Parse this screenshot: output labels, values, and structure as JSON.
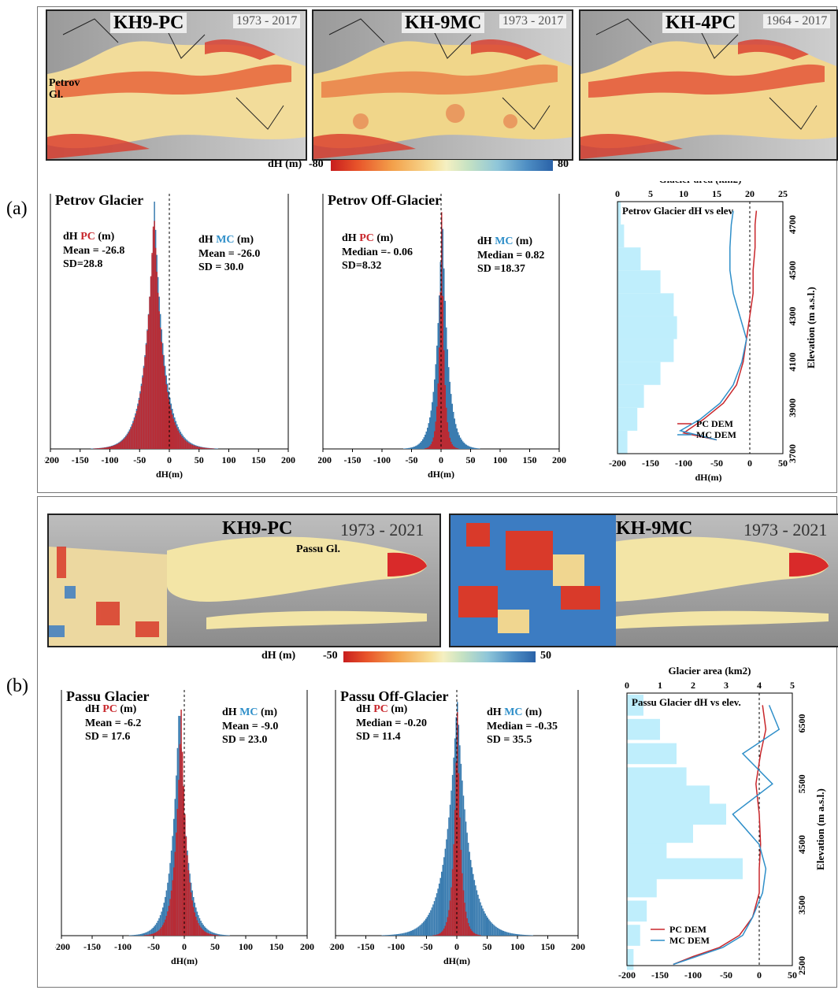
{
  "panel_a": {
    "letter": "(a)",
    "maps": [
      {
        "label": "KH9-PC",
        "years": "1973 - 2017"
      },
      {
        "label": "KH-9MC",
        "years": "1973 - 2017"
      },
      {
        "label": "KH-4PC",
        "years": "1964 - 2017"
      }
    ],
    "map_annotation": "Petrov Gl.",
    "colorbar": {
      "label": "dH (m)",
      "min": "-80",
      "max": "80"
    }
  },
  "panel_b": {
    "letter": "(b)",
    "maps": [
      {
        "label": "KH9-PC",
        "years": "1973 - 2021"
      },
      {
        "label": "KH-9MC",
        "years": "1973 - 2021"
      }
    ],
    "map_annotation": "Passu Gl.",
    "colorbar": {
      "label": "dH (m)",
      "min": "-50",
      "max": "50"
    }
  },
  "colors": {
    "pc": "#c8262b",
    "mc": "#2f8fc9",
    "mc_hist": "#3a7cb0",
    "pc_hist": "#c0272d",
    "area": "#bfeefc"
  },
  "chart_data": [
    {
      "id": "petrov-glacier-hist",
      "type": "histogram",
      "title": "Petrov Glacier",
      "xlabel": "dH(m)",
      "xlim": [
        -200,
        200
      ],
      "xticks": [
        -200,
        -150,
        -100,
        -50,
        0,
        50,
        100,
        150,
        200
      ],
      "pc_label": "dH PC (m)",
      "pc_stats": [
        "Mean = -26.8",
        "SD=28.8"
      ],
      "mc_label": "dH MC (m)",
      "mc_stats": [
        "Mean = -26.0",
        "SD = 30.0"
      ],
      "series": [
        {
          "name": "MC",
          "mean": -26.0,
          "sd": 30.0
        },
        {
          "name": "PC",
          "mean": -26.8,
          "sd": 28.8
        }
      ]
    },
    {
      "id": "petrov-off-hist",
      "type": "histogram",
      "title": "Petrov Off-Glacier",
      "xlabel": "dH(m)",
      "xlim": [
        -200,
        200
      ],
      "xticks": [
        -200,
        -150,
        -100,
        -50,
        0,
        50,
        100,
        150,
        200
      ],
      "pc_label": "dH PC (m)",
      "pc_stats": [
        "Median =- 0.06",
        "SD=8.32"
      ],
      "mc_label": "dH MC (m)",
      "mc_stats": [
        "Median = 0.82",
        "SD =18.37"
      ],
      "series": [
        {
          "name": "MC",
          "median": 0.82,
          "sd": 18.37
        },
        {
          "name": "PC",
          "median": -0.06,
          "sd": 8.32
        }
      ]
    },
    {
      "id": "petrov-elev",
      "type": "line",
      "title": "Petrov Glacier dH vs elev",
      "top_axis_label": "Glacier area (km2)",
      "top_ticks": [
        0,
        5,
        10,
        15,
        20,
        25
      ],
      "xlabel": "dH(m)",
      "xticks": [
        -200,
        -150,
        -100,
        -50,
        0,
        50
      ],
      "ylabel": "Elevation (m a.s.l.)",
      "yticks": [
        3700,
        3900,
        4100,
        4300,
        4500,
        4700
      ],
      "ylim": [
        3700,
        4800
      ],
      "area_bins": [
        {
          "elev": 3750,
          "area": 1.5
        },
        {
          "elev": 3850,
          "area": 3.0
        },
        {
          "elev": 3950,
          "area": 4.0
        },
        {
          "elev": 4050,
          "area": 6.5
        },
        {
          "elev": 4150,
          "area": 8.5
        },
        {
          "elev": 4250,
          "area": 9.0
        },
        {
          "elev": 4350,
          "area": 8.5
        },
        {
          "elev": 4450,
          "area": 6.5
        },
        {
          "elev": 4550,
          "area": 3.5
        },
        {
          "elev": 4650,
          "area": 1.0
        },
        {
          "elev": 4750,
          "area": 0.5
        }
      ],
      "series": [
        {
          "name": "PC DEM",
          "points": [
            [
              -50,
              3760
            ],
            [
              -100,
              3790
            ],
            [
              -70,
              3850
            ],
            [
              -40,
              3920
            ],
            [
              -20,
              4000
            ],
            [
              -10,
              4100
            ],
            [
              -5,
              4200
            ],
            [
              0,
              4300
            ],
            [
              5,
              4400
            ],
            [
              5,
              4500
            ],
            [
              8,
              4600
            ],
            [
              8,
              4700
            ],
            [
              10,
              4760
            ]
          ]
        },
        {
          "name": "MC DEM",
          "points": [
            [
              -50,
              3760
            ],
            [
              -105,
              3800
            ],
            [
              -75,
              3850
            ],
            [
              -45,
              3920
            ],
            [
              -25,
              4000
            ],
            [
              -12,
              4100
            ],
            [
              -5,
              4200
            ],
            [
              -15,
              4300
            ],
            [
              -25,
              4400
            ],
            [
              -30,
              4500
            ],
            [
              -30,
              4600
            ],
            [
              -28,
              4700
            ],
            [
              -25,
              4760
            ]
          ]
        }
      ]
    },
    {
      "id": "passu-glacier-hist",
      "type": "histogram",
      "title": "Passu Glacier",
      "xlabel": "dH(m)",
      "xlim": [
        -200,
        200
      ],
      "xticks": [
        -200,
        -150,
        -100,
        -50,
        0,
        50,
        100,
        150,
        200
      ],
      "pc_label": "dH PC (m)",
      "pc_stats": [
        "Mean = -6.2",
        "SD = 17.6"
      ],
      "mc_label": "dH MC (m)",
      "mc_stats": [
        "Mean = -9.0",
        "SD = 23.0"
      ],
      "series": [
        {
          "name": "MC",
          "mean": -9.0,
          "sd": 23.0
        },
        {
          "name": "PC",
          "mean": -6.2,
          "sd": 17.6
        }
      ]
    },
    {
      "id": "passu-off-hist",
      "type": "histogram",
      "title": "Passu Off-Glacier",
      "xlabel": "dH(m)",
      "xlim": [
        -200,
        200
      ],
      "xticks": [
        -200,
        -150,
        -100,
        -50,
        0,
        50,
        100,
        150,
        200
      ],
      "pc_label": "dH PC (m)",
      "pc_stats": [
        "Median = -0.20",
        "SD = 11.4"
      ],
      "mc_label": "dH MC (m)",
      "mc_stats": [
        "Median = -0.35",
        "SD = 35.5"
      ],
      "series": [
        {
          "name": "MC",
          "median": -0.35,
          "sd": 35.5
        },
        {
          "name": "PC",
          "median": -0.2,
          "sd": 11.4
        }
      ]
    },
    {
      "id": "passu-elev",
      "type": "line",
      "title": "Passu Glacier dH vs elev.",
      "top_axis_label": "Glacier area (km2)",
      "top_ticks": [
        0,
        1,
        2,
        3,
        4,
        5
      ],
      "xlabel": "dH(m)",
      "xticks": [
        -200,
        -150,
        -100,
        -50,
        0,
        50
      ],
      "ylabel": "Elevation (m a.s.l.)",
      "yticks": [
        2500,
        3500,
        4500,
        5500,
        6500
      ],
      "ylim": [
        2500,
        7000
      ],
      "area_bins": [
        {
          "elev": 2600,
          "area": 0.2
        },
        {
          "elev": 3000,
          "area": 0.4
        },
        {
          "elev": 3400,
          "area": 0.6
        },
        {
          "elev": 3800,
          "area": 0.9
        },
        {
          "elev": 4100,
          "area": 3.5
        },
        {
          "elev": 4400,
          "area": 1.2
        },
        {
          "elev": 4700,
          "area": 2.0
        },
        {
          "elev": 5000,
          "area": 3.0
        },
        {
          "elev": 5300,
          "area": 2.5
        },
        {
          "elev": 5600,
          "area": 1.8
        },
        {
          "elev": 6000,
          "area": 1.5
        },
        {
          "elev": 6400,
          "area": 1.0
        },
        {
          "elev": 6800,
          "area": 0.5
        }
      ],
      "series": [
        {
          "name": "PC DEM",
          "points": [
            [
              -130,
              2520
            ],
            [
              -100,
              2650
            ],
            [
              -60,
              2800
            ],
            [
              -30,
              3000
            ],
            [
              -10,
              3300
            ],
            [
              0,
              3700
            ],
            [
              0,
              4100
            ],
            [
              2,
              4500
            ],
            [
              0,
              5000
            ],
            [
              -5,
              5500
            ],
            [
              2,
              6000
            ],
            [
              10,
              6400
            ],
            [
              5,
              6800
            ]
          ]
        },
        {
          "name": "MC DEM",
          "points": [
            [
              -130,
              2520
            ],
            [
              -95,
              2650
            ],
            [
              -55,
              2800
            ],
            [
              -25,
              3000
            ],
            [
              -10,
              3300
            ],
            [
              5,
              3700
            ],
            [
              10,
              4100
            ],
            [
              0,
              4500
            ],
            [
              -40,
              5000
            ],
            [
              20,
              5500
            ],
            [
              -25,
              6000
            ],
            [
              30,
              6400
            ],
            [
              15,
              6800
            ]
          ]
        }
      ]
    }
  ]
}
